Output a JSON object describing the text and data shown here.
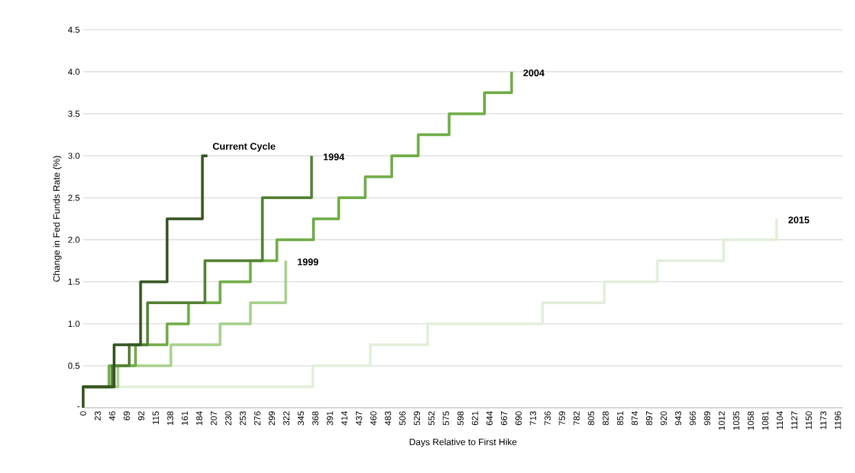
{
  "chart_data": {
    "type": "step",
    "xlabel": "Days Relative to First Hike",
    "ylabel": "Change in Fed Funds Rate (%)",
    "xlim": [
      0,
      1204
    ],
    "ylim": [
      0,
      4.5
    ],
    "xticks": [
      0,
      23,
      46,
      69,
      92,
      115,
      138,
      161,
      184,
      207,
      230,
      253,
      276,
      299,
      322,
      345,
      368,
      391,
      414,
      437,
      460,
      483,
      506,
      529,
      552,
      575,
      598,
      621,
      644,
      667,
      690,
      713,
      736,
      759,
      782,
      805,
      828,
      851,
      874,
      897,
      920,
      943,
      966,
      989,
      1012,
      1035,
      1058,
      1081,
      1104,
      1127,
      1150,
      1173,
      1196
    ],
    "yticks": [
      {
        "value": 0,
        "label": "-"
      },
      {
        "value": 0.5,
        "label": "0.5"
      },
      {
        "value": 1,
        "label": "1.0"
      },
      {
        "value": 1.5,
        "label": "1.5"
      },
      {
        "value": 2,
        "label": "2.0"
      },
      {
        "value": 2.5,
        "label": "2.5"
      },
      {
        "value": 3,
        "label": "3.0"
      },
      {
        "value": 3.5,
        "label": "3.5"
      },
      {
        "value": 4,
        "label": "4.0"
      },
      {
        "value": 4.5,
        "label": "4.5"
      }
    ],
    "grid": "y",
    "series": [
      {
        "name": "2015",
        "color": "#e2efda",
        "x": [
          0,
          0,
          364,
          455,
          546,
          728,
          826,
          910,
          1015,
          1099
        ],
        "values": [
          0,
          0.25,
          0.5,
          0.75,
          1.0,
          1.25,
          1.5,
          1.75,
          2.0,
          2.25
        ]
      },
      {
        "name": "1999",
        "color": "#a9d18e",
        "x": [
          0,
          0,
          55,
          139,
          217,
          265,
          321
        ],
        "values": [
          0,
          0.25,
          0.5,
          0.75,
          1.0,
          1.25,
          1.75
        ]
      },
      {
        "name": "2004",
        "color": "#70ad47",
        "x": [
          0,
          0,
          41,
          83,
          133,
          167,
          217,
          265,
          307,
          365,
          405,
          447,
          489,
          531,
          580,
          636,
          679
        ],
        "values": [
          0,
          0.25,
          0.5,
          0.75,
          1.0,
          1.25,
          1.5,
          1.75,
          2.0,
          2.25,
          2.5,
          2.75,
          3.0,
          3.25,
          3.5,
          3.75,
          4.0
        ]
      },
      {
        "name": "1994",
        "color": "#548235",
        "x": [
          0,
          0,
          46,
          73,
          102,
          193,
          284,
          362
        ],
        "values": [
          0,
          0.25,
          0.5,
          0.75,
          1.25,
          1.75,
          2.5,
          3.0
        ]
      },
      {
        "name": "Current Cycle",
        "color": "#375623",
        "x": [
          0,
          0,
          49,
          91,
          133,
          189,
          197
        ],
        "values": [
          0,
          0.25,
          0.75,
          1.5,
          2.25,
          3.0,
          3.0
        ]
      }
    ]
  }
}
